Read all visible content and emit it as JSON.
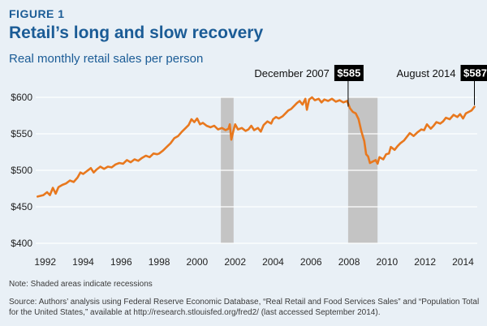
{
  "figure": {
    "label": "FIGURE 1",
    "title": "Retail’s long and slow recovery",
    "subtitle": "Real monthly retail sales per person",
    "note": "Note: Shaded areas indicate recessions",
    "source": "Source: Authors’ analysis using Federal Reserve Economic Database, “Real Retail and Food Services Sales” and “Population Total for the United States,” available at http://research.stlouisfed.org/fred2/ (last accessed September 2014)."
  },
  "colors": {
    "line": "#e8781e",
    "recession": "#c4c4c4",
    "grid": "#ffffff",
    "text": "#1b5c96",
    "background": "#e9f0f6"
  },
  "chart_data": {
    "type": "line",
    "title": "",
    "xlabel": "",
    "ylabel": "",
    "xlim": [
      1991.5,
      2014.75
    ],
    "ylim": [
      400,
      600
    ],
    "x_ticks": [
      1992,
      1994,
      1996,
      1998,
      2000,
      2002,
      2004,
      2006,
      2008,
      2010,
      2012,
      2014
    ],
    "x_tick_labels": [
      "1992",
      "1994",
      "1996",
      "1998",
      "2000",
      "2002",
      "2004",
      "2006",
      "2008",
      "2010",
      "2012",
      "2014"
    ],
    "y_ticks": [
      400,
      450,
      500,
      550,
      600
    ],
    "y_tick_labels": [
      "$400",
      "$450",
      "$500",
      "$550",
      "$600"
    ],
    "grid": "horizontal",
    "recessions": [
      [
        2001.25,
        2001.92
      ],
      [
        2007.95,
        2009.5
      ]
    ],
    "series": [
      {
        "values": [
          [
            1991.6,
            464
          ],
          [
            1991.9,
            466
          ],
          [
            1992.1,
            470
          ],
          [
            1992.25,
            466
          ],
          [
            1992.4,
            476
          ],
          [
            1992.55,
            468
          ],
          [
            1992.7,
            477
          ],
          [
            1992.9,
            480
          ],
          [
            1993.1,
            482
          ],
          [
            1993.3,
            486
          ],
          [
            1993.5,
            484
          ],
          [
            1993.7,
            490
          ],
          [
            1993.85,
            497
          ],
          [
            1994.0,
            495
          ],
          [
            1994.2,
            499
          ],
          [
            1994.4,
            503
          ],
          [
            1994.55,
            497
          ],
          [
            1994.7,
            501
          ],
          [
            1994.9,
            505
          ],
          [
            1995.1,
            502
          ],
          [
            1995.3,
            505
          ],
          [
            1995.5,
            504
          ],
          [
            1995.7,
            508
          ],
          [
            1995.9,
            510
          ],
          [
            1996.1,
            509
          ],
          [
            1996.3,
            514
          ],
          [
            1996.5,
            511
          ],
          [
            1996.7,
            515
          ],
          [
            1996.9,
            513
          ],
          [
            1997.1,
            517
          ],
          [
            1997.3,
            520
          ],
          [
            1997.5,
            518
          ],
          [
            1997.7,
            523
          ],
          [
            1997.9,
            522
          ],
          [
            1998.0,
            523
          ],
          [
            1998.2,
            527
          ],
          [
            1998.4,
            532
          ],
          [
            1998.6,
            537
          ],
          [
            1998.8,
            544
          ],
          [
            1999.0,
            547
          ],
          [
            1999.2,
            553
          ],
          [
            1999.4,
            558
          ],
          [
            1999.55,
            562
          ],
          [
            1999.7,
            570
          ],
          [
            1999.85,
            566
          ],
          [
            2000.0,
            571
          ],
          [
            2000.15,
            563
          ],
          [
            2000.3,
            565
          ],
          [
            2000.5,
            561
          ],
          [
            2000.7,
            559
          ],
          [
            2000.9,
            561
          ],
          [
            2001.1,
            556
          ],
          [
            2001.3,
            558
          ],
          [
            2001.5,
            555
          ],
          [
            2001.65,
            557
          ],
          [
            2001.72,
            563
          ],
          [
            2001.8,
            542
          ],
          [
            2001.9,
            553
          ],
          [
            2002.0,
            563
          ],
          [
            2002.15,
            556
          ],
          [
            2002.35,
            558
          ],
          [
            2002.55,
            554
          ],
          [
            2002.7,
            556
          ],
          [
            2002.85,
            561
          ],
          [
            2003.0,
            555
          ],
          [
            2003.2,
            558
          ],
          [
            2003.35,
            553
          ],
          [
            2003.5,
            562
          ],
          [
            2003.7,
            567
          ],
          [
            2003.9,
            564
          ],
          [
            2004.0,
            570
          ],
          [
            2004.15,
            573
          ],
          [
            2004.3,
            571
          ],
          [
            2004.5,
            574
          ],
          [
            2004.65,
            578
          ],
          [
            2004.8,
            582
          ],
          [
            2004.95,
            584
          ],
          [
            2005.1,
            588
          ],
          [
            2005.25,
            592
          ],
          [
            2005.4,
            595
          ],
          [
            2005.55,
            590
          ],
          [
            2005.7,
            598
          ],
          [
            2005.78,
            583
          ],
          [
            2005.9,
            597
          ],
          [
            2006.05,
            600
          ],
          [
            2006.2,
            596
          ],
          [
            2006.4,
            598
          ],
          [
            2006.55,
            593
          ],
          [
            2006.7,
            597
          ],
          [
            2006.9,
            595
          ],
          [
            2007.1,
            598
          ],
          [
            2007.3,
            594
          ],
          [
            2007.5,
            596
          ],
          [
            2007.7,
            593
          ],
          [
            2007.9,
            595
          ],
          [
            2008.05,
            585
          ],
          [
            2008.2,
            580
          ],
          [
            2008.35,
            578
          ],
          [
            2008.5,
            570
          ],
          [
            2008.65,
            553
          ],
          [
            2008.8,
            540
          ],
          [
            2008.9,
            522
          ],
          [
            2009.0,
            519
          ],
          [
            2009.1,
            510
          ],
          [
            2009.25,
            512
          ],
          [
            2009.4,
            514
          ],
          [
            2009.5,
            509
          ],
          [
            2009.6,
            518
          ],
          [
            2009.8,
            515
          ],
          [
            2009.95,
            522
          ],
          [
            2010.1,
            523
          ],
          [
            2010.2,
            532
          ],
          [
            2010.4,
            528
          ],
          [
            2010.55,
            533
          ],
          [
            2010.7,
            537
          ],
          [
            2010.9,
            541
          ],
          [
            2011.05,
            546
          ],
          [
            2011.2,
            551
          ],
          [
            2011.4,
            547
          ],
          [
            2011.6,
            552
          ],
          [
            2011.8,
            556
          ],
          [
            2011.95,
            555
          ],
          [
            2012.1,
            563
          ],
          [
            2012.3,
            557
          ],
          [
            2012.45,
            561
          ],
          [
            2012.6,
            566
          ],
          [
            2012.8,
            564
          ],
          [
            2012.95,
            567
          ],
          [
            2013.1,
            572
          ],
          [
            2013.3,
            570
          ],
          [
            2013.5,
            576
          ],
          [
            2013.7,
            573
          ],
          [
            2013.85,
            577
          ],
          [
            2014.0,
            571
          ],
          [
            2014.15,
            578
          ],
          [
            2014.3,
            580
          ],
          [
            2014.45,
            582
          ],
          [
            2014.6,
            587
          ]
        ]
      }
    ],
    "annotations": [
      {
        "text": "December 2007",
        "value": "$585",
        "x": 2007.95,
        "y": 585
      },
      {
        "text": "August 2014",
        "value": "$587",
        "x": 2014.6,
        "y": 587
      }
    ]
  }
}
